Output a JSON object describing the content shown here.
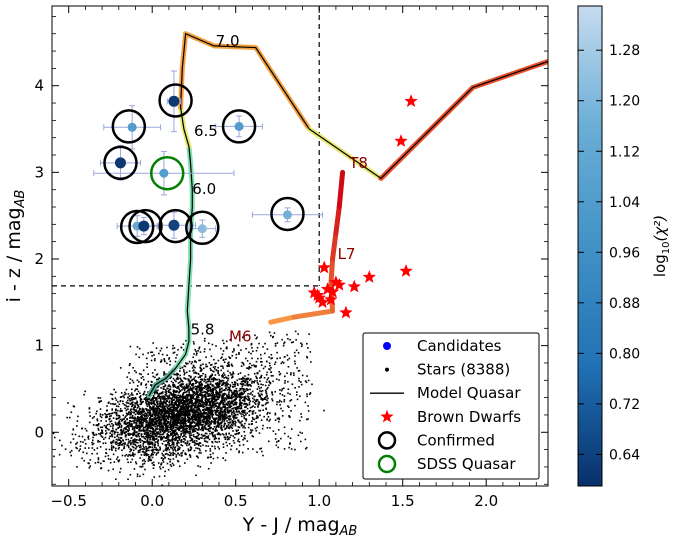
{
  "chart_data": {
    "type": "scatter",
    "xlabel": "Y - J / mag",
    "xlabel_sub": "AB",
    "ylabel": "i - z / mag",
    "ylabel_sub": "AB",
    "xlim": [
      -0.6,
      2.37
    ],
    "ylim": [
      -0.62,
      4.92
    ],
    "x_ticks": [
      {
        "value": -0.5,
        "label": "−0.5"
      },
      {
        "value": 0.0,
        "label": "0.0"
      },
      {
        "value": 0.5,
        "label": "0.5"
      },
      {
        "value": 1.0,
        "label": "1.0"
      },
      {
        "value": 1.5,
        "label": "1.5"
      },
      {
        "value": 2.0,
        "label": "2.0"
      }
    ],
    "y_ticks": [
      {
        "value": 0,
        "label": "0"
      },
      {
        "value": 1,
        "label": "1"
      },
      {
        "value": 2,
        "label": "2"
      },
      {
        "value": 3,
        "label": "3"
      },
      {
        "value": 4,
        "label": "4"
      }
    ],
    "selection_cut": {
      "x_max": 1.0,
      "y_min": 1.69
    },
    "model_quasar_track": [
      [
        -0.02,
        0.42
      ],
      [
        0.02,
        0.55
      ],
      [
        0.08,
        0.62
      ],
      [
        0.14,
        0.74
      ],
      [
        0.2,
        0.9
      ],
      [
        0.22,
        1.05
      ],
      [
        0.22,
        1.2
      ],
      [
        0.21,
        1.4
      ],
      [
        0.22,
        1.7
      ],
      [
        0.23,
        2.0
      ],
      [
        0.23,
        2.3
      ],
      [
        0.24,
        2.6
      ],
      [
        0.24,
        2.8
      ],
      [
        0.23,
        3.1
      ],
      [
        0.22,
        3.3
      ],
      [
        0.19,
        3.5
      ],
      [
        0.17,
        3.75
      ],
      [
        0.18,
        4.2
      ],
      [
        0.2,
        4.6
      ],
      [
        0.37,
        4.46
      ],
      [
        0.62,
        4.44
      ],
      [
        0.94,
        3.5
      ],
      [
        1.37,
        2.93
      ],
      [
        1.92,
        3.98
      ],
      [
        2.37,
        4.28
      ]
    ],
    "redshift_labels": [
      {
        "z": "7.0",
        "x": 0.38,
        "y": 4.46
      },
      {
        "z": "6.5",
        "x": 0.25,
        "y": 3.42
      },
      {
        "z": "6.0",
        "x": 0.24,
        "y": 2.75
      },
      {
        "z": "5.8",
        "x": 0.23,
        "y": 1.13
      }
    ],
    "brown_dwarf_sequence": [
      [
        0.71,
        1.27
      ],
      [
        0.85,
        1.33
      ],
      [
        1.08,
        1.4
      ],
      [
        1.07,
        1.7
      ],
      [
        1.08,
        2.0
      ],
      [
        1.1,
        2.3
      ],
      [
        1.12,
        2.6
      ],
      [
        1.14,
        3.0
      ]
    ],
    "spectral_type_labels": [
      {
        "label": "M6",
        "x": 0.46,
        "y": 1.05
      },
      {
        "label": "L7",
        "x": 1.11,
        "y": 2.0
      },
      {
        "label": "T8",
        "x": 1.18,
        "y": 3.05
      }
    ],
    "brown_dwarfs": [
      [
        1.55,
        3.82
      ],
      [
        1.49,
        3.36
      ],
      [
        1.03,
        1.9
      ],
      [
        1.52,
        1.86
      ],
      [
        1.3,
        1.79
      ],
      [
        1.21,
        1.68
      ],
      [
        1.16,
        1.38
      ],
      [
        1.1,
        1.73
      ],
      [
        1.12,
        1.7
      ],
      [
        1.08,
        1.62
      ],
      [
        1.05,
        1.65
      ],
      [
        1.0,
        1.55
      ],
      [
        0.99,
        1.58
      ],
      [
        0.97,
        1.61
      ],
      [
        1.02,
        1.5
      ],
      [
        1.07,
        1.53
      ]
    ],
    "candidates": [
      {
        "x": 0.13,
        "y": 3.82,
        "log_chi2": 0.62,
        "xerr": 0.04,
        "yerr": 0.35
      },
      {
        "x": -0.12,
        "y": 3.52,
        "log_chi2": 1.02,
        "xerr": 0.17,
        "yerr": 0.25
      },
      {
        "x": 0.52,
        "y": 3.53,
        "log_chi2": 1.02,
        "xerr": 0.14,
        "yerr": 0.12
      },
      {
        "x": -0.19,
        "y": 3.11,
        "log_chi2": 0.62,
        "xerr": 0.12,
        "yerr": 0.2
      },
      {
        "x": 0.07,
        "y": 2.99,
        "log_chi2": 1.02,
        "xerr": 0.42,
        "yerr": 0.25
      },
      {
        "x": 0.81,
        "y": 2.51,
        "log_chi2": 1.12,
        "xerr": 0.21,
        "yerr": 0.08
      },
      {
        "x": -0.09,
        "y": 2.38,
        "log_chi2": 1.08,
        "xerr": 0.12,
        "yerr": 0.12
      },
      {
        "x": -0.05,
        "y": 2.38,
        "log_chi2": 0.62,
        "xerr": 0.08,
        "yerr": 0.1
      },
      {
        "x": 0.13,
        "y": 2.39,
        "log_chi2": 0.66,
        "xerr": 0.13,
        "yerr": 0.15
      },
      {
        "x": 0.3,
        "y": 2.35,
        "log_chi2": 1.18,
        "xerr": 0.08,
        "yerr": 0.1
      }
    ],
    "confirmed": [
      [
        0.14,
        3.83
      ],
      [
        -0.14,
        3.53
      ],
      [
        0.52,
        3.53
      ],
      [
        -0.19,
        3.11
      ],
      [
        0.81,
        2.52
      ],
      [
        -0.09,
        2.37
      ],
      [
        -0.04,
        2.38
      ],
      [
        0.14,
        2.38
      ],
      [
        0.3,
        2.36
      ]
    ],
    "sdss_quasar": [
      [
        0.09,
        2.99
      ]
    ],
    "stars_count": 8388,
    "legend": [
      {
        "key": "candidates",
        "label": "Candidates"
      },
      {
        "key": "stars",
        "label": "Stars (8388)"
      },
      {
        "key": "model",
        "label": "Model Quasar"
      },
      {
        "key": "brown",
        "label": "Brown Dwarfs"
      },
      {
        "key": "confirmed",
        "label": "Confirmed"
      },
      {
        "key": "sdss",
        "label": "SDSS Quasar"
      }
    ],
    "legend_position": "lower-right",
    "colorbar": {
      "label": "log",
      "label_tail": "(χ²)",
      "label_sub": "10",
      "range": [
        0.59,
        1.35
      ],
      "ticks": [
        0.64,
        0.72,
        0.8,
        0.88,
        0.96,
        1.04,
        1.12,
        1.2,
        1.28
      ],
      "tick_labels": [
        "0.64",
        "0.72",
        "0.80",
        "0.88",
        "0.96",
        "1.04",
        "1.12",
        "1.20",
        "1.28"
      ],
      "color_low": "#08306b",
      "color_mid": "#4292c6",
      "color_high": "#c6dbef"
    },
    "colors": {
      "star": "#000000",
      "brown_dwarf": "#ff0000",
      "confirmed_ring": "#000000",
      "sdss_ring": "#008000",
      "cut_line": "#000000",
      "label_dark_red": "#8b0000",
      "errorbar": "#9aa7e0"
    }
  }
}
